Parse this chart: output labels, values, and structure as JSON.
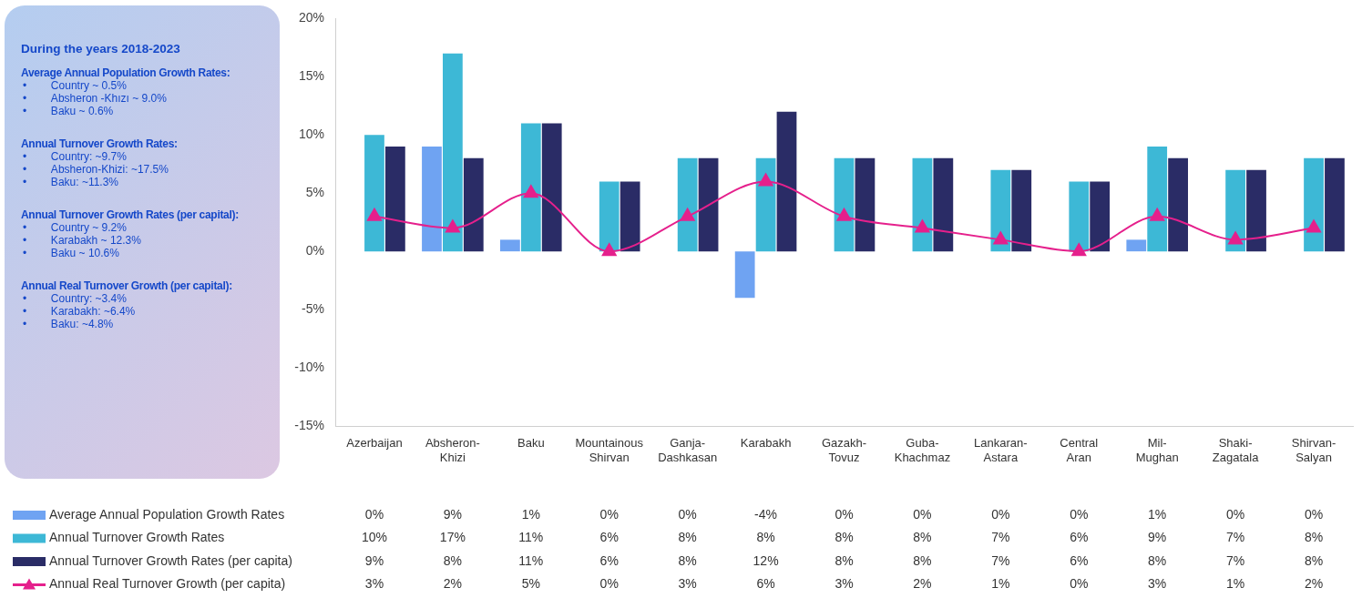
{
  "chart_data": {
    "type": "bar",
    "subtitle": "During the years 2018-2023",
    "annotations": [
      "Average Annual Population Growth Rates:\n•\tCountry ~ 0.5%\n•\tAbsheron -Khızı ~ 9.0%\n•\tBaku ~ 0.6%",
      "Annual Turnover Growth Rates:\n•\tCountry: ~9.7%\n•\tAbsheron-Khizi: ~17.5%\n•\tBaku: ~11.3%",
      "Annual Turnover Growth Rates (per capital):\n•\tCountry ~ 9.2%\n•\tKarabakh ~ 12.3%\n•\tBaku ~ 10.6%",
      "Annual Real Turnover Growth (per capital):\n•\tCountry: ~3.4%\n•\tKarabakh: ~6.4%\n•\tBaku: ~4.8%"
    ],
    "categories": [
      "Azerbaijan",
      "Absheron-Khizi",
      "Baku",
      "Mountainous Shirvan",
      "Ganja-Dashkasan",
      "Karabakh",
      "Gazakh-Tovuz",
      "Guba-Khachmaz",
      "Lankaran-Astara",
      "Central Aran",
      "Mil-Mughan",
      "Shaki-Zagatala",
      "Shirvan-Salyan"
    ],
    "series": [
      {
        "name": "Average Annual Population Growth Rates",
        "color": "#6fa3f2",
        "values": [
          0,
          9,
          1,
          0,
          0,
          -4,
          0,
          0,
          0,
          0,
          1,
          0,
          0
        ],
        "value_labels": [
          "0%",
          "9%",
          "1%",
          "0%",
          "0%",
          "-4%",
          "0%",
          "0%",
          "0%",
          "0%",
          "1%",
          "0%",
          "0%"
        ]
      },
      {
        "name": "Annual Turnover Growth Rates",
        "color": "#3db8d6",
        "values": [
          10,
          17,
          11,
          6,
          8,
          8,
          8,
          8,
          7,
          6,
          9,
          7,
          8
        ],
        "value_labels": [
          "10%",
          "17%",
          "11%",
          "6%",
          "8%",
          "8%",
          "8%",
          "8%",
          "7%",
          "6%",
          "9%",
          "7%",
          "8%"
        ]
      },
      {
        "name": "Annual Turnover Growth Rates (per capita)",
        "color": "#2a2c66",
        "values": [
          9,
          8,
          11,
          6,
          8,
          12,
          8,
          8,
          7,
          6,
          8,
          7,
          8
        ],
        "value_labels": [
          "9%",
          "8%",
          "11%",
          "6%",
          "8%",
          "12%",
          "8%",
          "8%",
          "7%",
          "6%",
          "8%",
          "7%",
          "8%"
        ]
      },
      {
        "name": "Annual Real Turnover Growth (per capita)",
        "type": "line",
        "color": "#e5208c",
        "values": [
          3,
          2,
          5,
          0,
          3,
          6,
          3,
          2,
          1,
          0,
          3,
          1,
          2
        ],
        "value_labels": [
          "3%",
          "2%",
          "5%",
          "0%",
          "3%",
          "6%",
          "3%",
          "2%",
          "1%",
          "0%",
          "3%",
          "1%",
          "2%"
        ]
      }
    ],
    "ylim": [
      -15,
      20
    ],
    "yticks": [
      {
        "value": -15,
        "label": "-15%"
      },
      {
        "value": -10,
        "label": "-10%"
      },
      {
        "value": -5,
        "label": "-5%"
      },
      {
        "value": 0,
        "label": "0%"
      },
      {
        "value": 5,
        "label": "5%"
      },
      {
        "value": 10,
        "label": "10%"
      },
      {
        "value": 15,
        "label": "15%"
      },
      {
        "value": 20,
        "label": "20%"
      }
    ],
    "grid": false,
    "legend": "bottom",
    "marker": "triangle",
    "line_style": "solid"
  }
}
